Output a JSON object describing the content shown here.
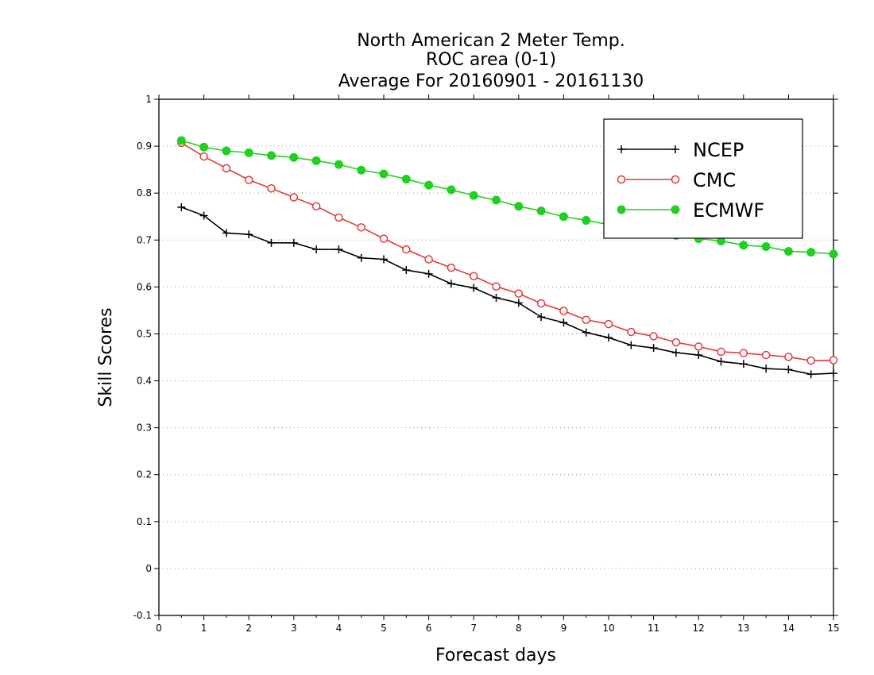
{
  "chart_data": {
    "type": "line",
    "title_lines": [
      "North American 2 Meter Temp.",
      "ROC area (0-1)",
      "Average For 20160901 - 20161130"
    ],
    "xlabel": "Forecast days",
    "ylabel": "Skill Scores",
    "xlim": [
      0,
      15
    ],
    "ylim": [
      -0.1,
      1
    ],
    "x_ticks": [
      0,
      1,
      2,
      3,
      4,
      5,
      6,
      7,
      8,
      9,
      10,
      11,
      12,
      13,
      14,
      15
    ],
    "x_tick_labels": [
      "0",
      "1",
      "2",
      "3",
      "4",
      "5",
      "6",
      "7",
      "8",
      "9",
      "10",
      "11",
      "12",
      "13",
      "14",
      "15"
    ],
    "y_ticks": [
      -0.1,
      0,
      0.1,
      0.2,
      0.3,
      0.4,
      0.5,
      0.6,
      0.7,
      0.8,
      0.9,
      1
    ],
    "y_tick_labels": [
      "-0.1",
      "0",
      "0.1",
      "0.2",
      "0.3",
      "0.4",
      "0.5",
      "0.6",
      "0.7",
      "0.8",
      "0.9",
      "1"
    ],
    "grid": "horizontal dotted",
    "legend_position": "top-right",
    "x": [
      0.5,
      1,
      1.5,
      2,
      2.5,
      3,
      3.5,
      4,
      4.5,
      5,
      5.5,
      6,
      6.5,
      7,
      7.5,
      8,
      8.5,
      9,
      9.5,
      10,
      10.5,
      11,
      11.5,
      12,
      12.5,
      13,
      13.5,
      14,
      14.5,
      15
    ],
    "series": [
      {
        "name": "NCEP",
        "color": "#000000",
        "marker": "plus",
        "values": [
          0.77,
          0.752,
          0.715,
          0.712,
          0.694,
          0.694,
          0.68,
          0.68,
          0.662,
          0.659,
          0.636,
          0.628,
          0.607,
          0.598,
          0.577,
          0.566,
          0.536,
          0.524,
          0.503,
          0.492,
          0.476,
          0.47,
          0.46,
          0.455,
          0.441,
          0.436,
          0.426,
          0.424,
          0.414,
          0.416
        ]
      },
      {
        "name": "CMC",
        "color": "#e03a3a",
        "marker": "open-circle",
        "values": [
          0.907,
          0.878,
          0.853,
          0.828,
          0.81,
          0.791,
          0.772,
          0.748,
          0.727,
          0.703,
          0.68,
          0.659,
          0.641,
          0.623,
          0.601,
          0.586,
          0.565,
          0.549,
          0.53,
          0.521,
          0.504,
          0.495,
          0.482,
          0.473,
          0.462,
          0.459,
          0.455,
          0.451,
          0.443,
          0.444
        ]
      },
      {
        "name": "ECMWF",
        "color": "#1fd01f",
        "marker": "filled-circle",
        "values": [
          0.912,
          0.898,
          0.89,
          0.886,
          0.88,
          0.876,
          0.869,
          0.861,
          0.849,
          0.841,
          0.83,
          0.817,
          0.807,
          0.795,
          0.785,
          0.772,
          0.762,
          0.75,
          0.742,
          0.733,
          0.725,
          0.718,
          0.71,
          0.703,
          0.698,
          0.689,
          0.686,
          0.676,
          0.674,
          0.67
        ]
      }
    ]
  }
}
